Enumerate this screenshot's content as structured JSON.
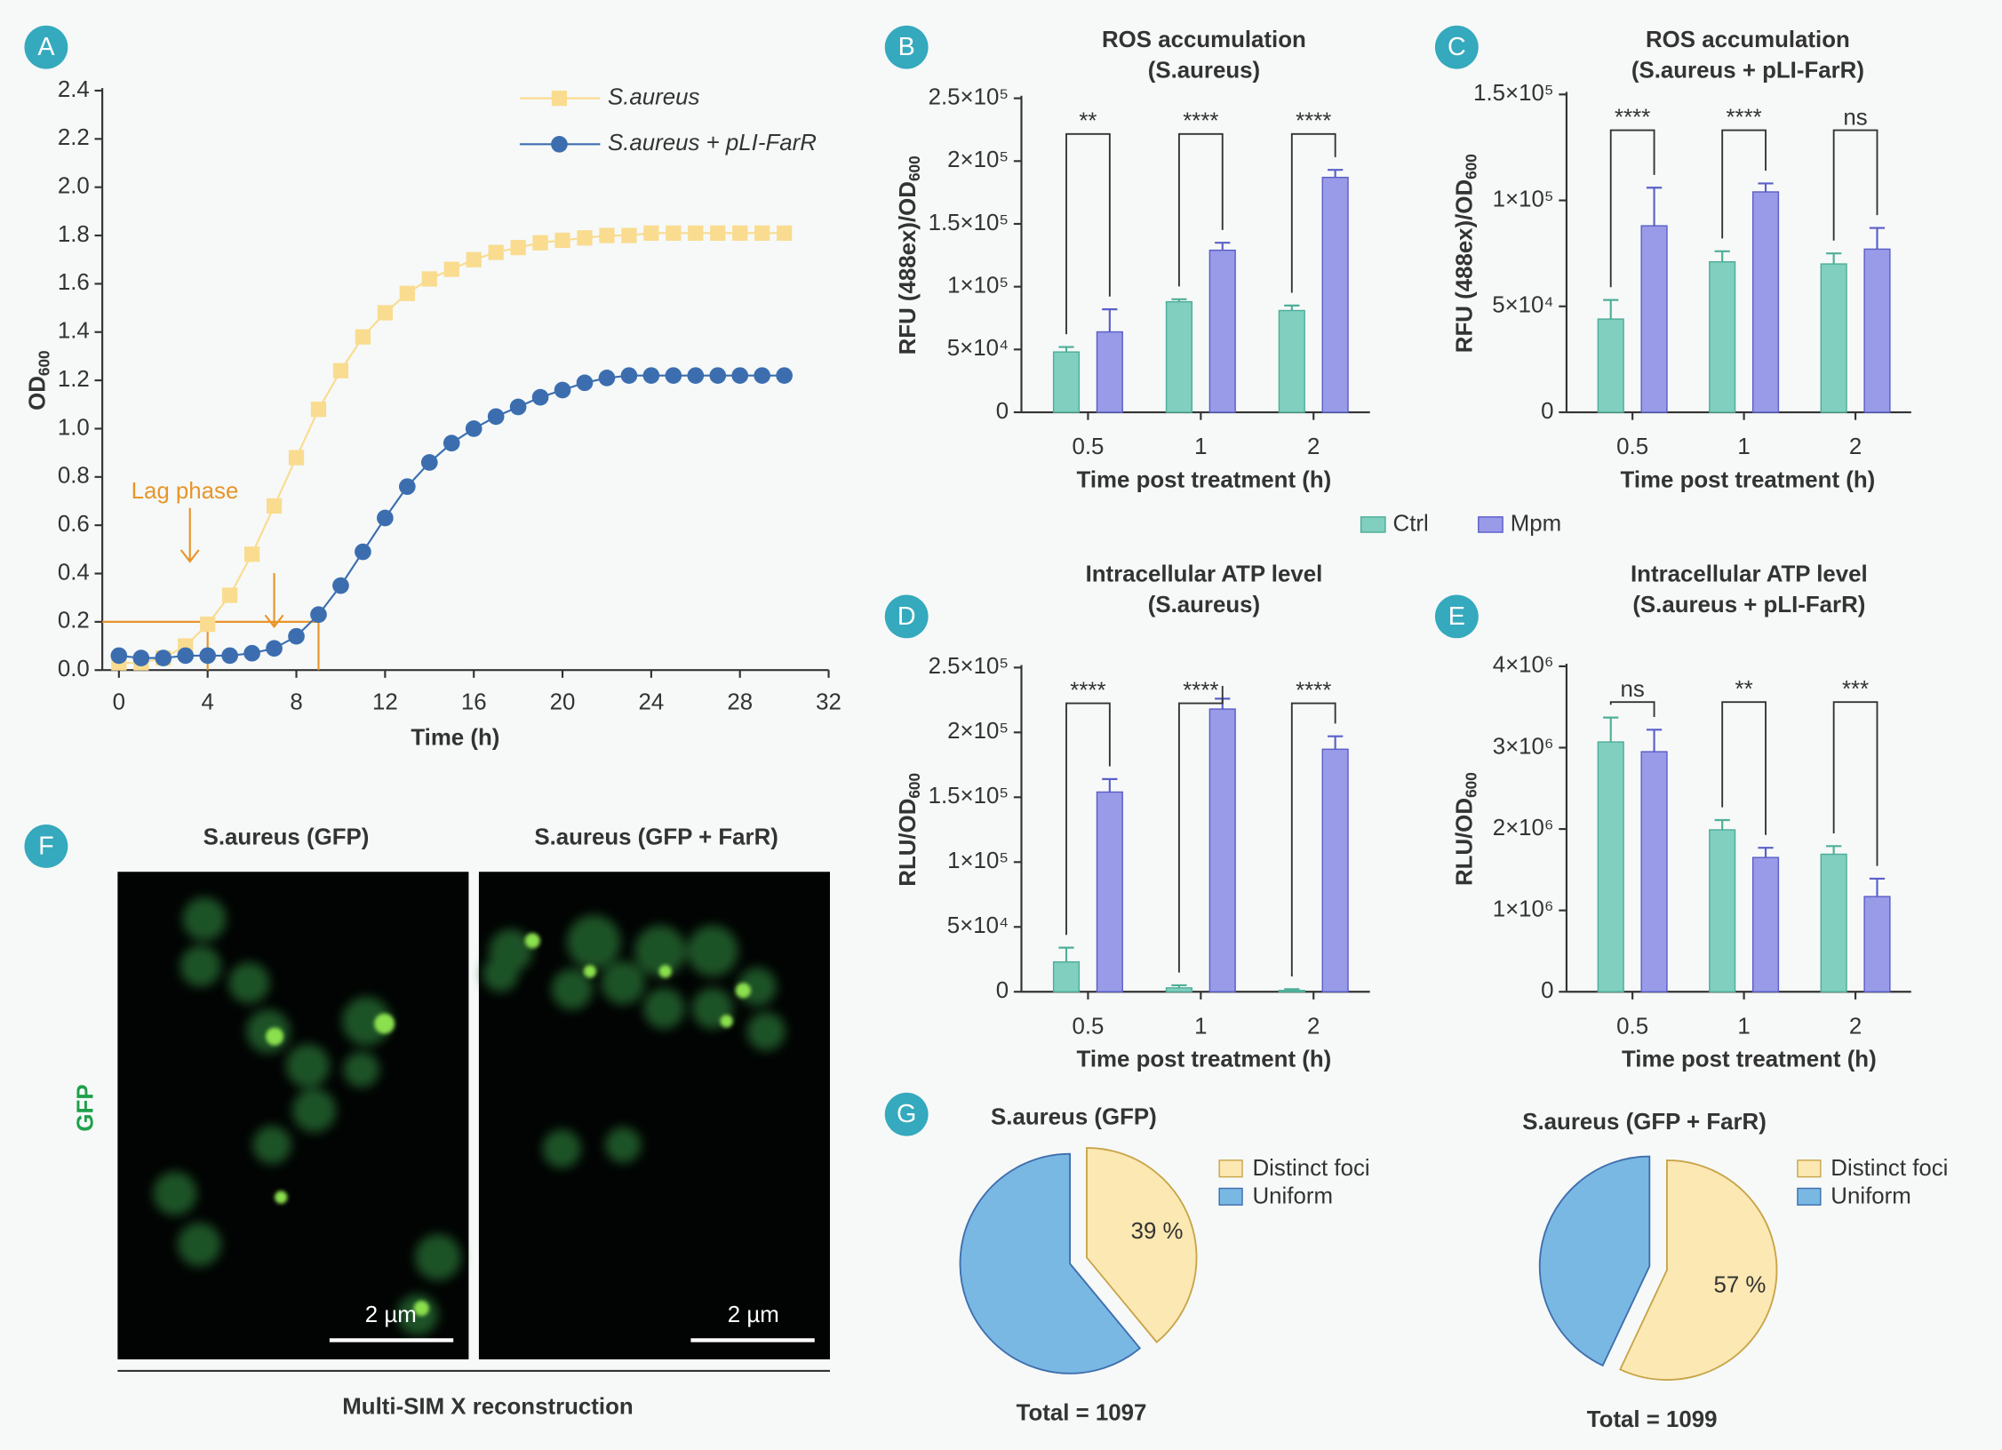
{
  "chart_data": [
    {
      "type": "line",
      "panel": "A",
      "x": [
        0,
        1,
        2,
        3,
        4,
        5,
        6,
        7,
        8,
        9,
        10,
        11,
        12,
        13,
        14,
        15,
        16,
        17,
        18,
        19,
        20,
        21,
        22,
        23,
        24,
        25,
        26,
        27,
        28,
        29,
        30
      ],
      "series": [
        {
          "name": "S.aureus",
          "color": "#f9dc8f",
          "marker": "square",
          "values": [
            0.03,
            0.03,
            0.05,
            0.1,
            0.19,
            0.31,
            0.48,
            0.68,
            0.88,
            1.08,
            1.24,
            1.38,
            1.48,
            1.56,
            1.62,
            1.66,
            1.7,
            1.73,
            1.75,
            1.77,
            1.78,
            1.79,
            1.8,
            1.8,
            1.81,
            1.81,
            1.81,
            1.81,
            1.81,
            1.81,
            1.81
          ]
        },
        {
          "name": "S.aureus + pLI-FarR",
          "color": "#3c6eaf",
          "marker": "circle",
          "values": [
            0.06,
            0.05,
            0.05,
            0.06,
            0.06,
            0.06,
            0.07,
            0.09,
            0.14,
            0.23,
            0.35,
            0.49,
            0.63,
            0.76,
            0.86,
            0.94,
            1.0,
            1.05,
            1.09,
            1.13,
            1.16,
            1.19,
            1.21,
            1.22,
            1.22,
            1.22,
            1.22,
            1.22,
            1.22,
            1.22,
            1.22
          ]
        }
      ],
      "xlabel": "Time (h)",
      "ylabel": [
        "OD",
        "600"
      ],
      "xlim": [
        -0.75,
        32
      ],
      "xticks": [
        0,
        4,
        8,
        12,
        16,
        20,
        24,
        28,
        32
      ],
      "ylim": [
        0,
        2.4
      ],
      "yticks": [
        {
          "value": 0,
          "label": "0.0"
        },
        0.2,
        0.4,
        0.6,
        0.8,
        {
          "value": 1,
          "label": "1.0"
        },
        1.2,
        1.4,
        1.6,
        1.8,
        {
          "value": 2,
          "label": "2.0"
        },
        2.2,
        2.4
      ],
      "annotation": "Lag phase",
      "annotation_color": "#e8952a",
      "lag_level": 0.2,
      "lag_ends": [
        4,
        9
      ],
      "lag_arrows": [
        [
          3.2,
          0.45
        ],
        [
          7,
          0.18
        ]
      ]
    },
    {
      "type": "bar",
      "panel": "B",
      "title": "ROS accumulation",
      "subtitle": "(S.aureus)",
      "categories": [
        "0.5",
        "1",
        "2"
      ],
      "series": [
        {
          "values": [
            48000,
            88000,
            81000
          ],
          "errors": [
            4000,
            2000,
            4000
          ]
        },
        {
          "values": [
            64000,
            129000,
            187000
          ],
          "errors": [
            18000,
            6000,
            6000
          ]
        }
      ],
      "significance": [
        "**",
        "****",
        "****"
      ],
      "xlabel": "Time post treatment (h)",
      "ylabel": [
        "RFU (488ex)/OD",
        "600"
      ],
      "ylim": [
        0,
        250000
      ],
      "yticks": [
        0,
        {
          "value": 50000,
          "label": "5×10⁴"
        },
        {
          "value": 100000,
          "label": "1×10⁵"
        },
        {
          "value": 150000,
          "label": "1.5×10⁵"
        },
        {
          "value": 200000,
          "label": "2×10⁵"
        },
        {
          "value": 250000,
          "label": "2.5×10⁵"
        }
      ]
    },
    {
      "type": "bar",
      "panel": "C",
      "title": "ROS accumulation",
      "subtitle": "(S.aureus + pLI-FarR)",
      "categories": [
        "0.5",
        "1",
        "2"
      ],
      "series": [
        {
          "values": [
            44000,
            71000,
            70000
          ],
          "errors": [
            9000,
            5000,
            5000
          ]
        },
        {
          "values": [
            88000,
            104000,
            77000
          ],
          "errors": [
            18000,
            4000,
            10000
          ]
        }
      ],
      "significance": [
        "****",
        "****",
        "ns"
      ],
      "xlabel": "Time post treatment (h)",
      "ylabel": [
        "RFU (488ex)/OD",
        "600"
      ],
      "ylim": [
        0,
        150000
      ],
      "yticks": [
        0,
        {
          "value": 50000,
          "label": "5×10⁴"
        },
        {
          "value": 100000,
          "label": "1×10⁵"
        },
        {
          "value": 150000,
          "label": "1.5×10⁵"
        }
      ]
    },
    {
      "type": "bar",
      "panel": "D",
      "title": "Intracellular ATP level",
      "subtitle": "(S.aureus)",
      "categories": [
        "0.5",
        "1",
        "2"
      ],
      "series": [
        {
          "values": [
            23000,
            3000,
            1000
          ],
          "errors": [
            11000,
            2000,
            1000
          ]
        },
        {
          "values": [
            154000,
            218000,
            187000
          ],
          "errors": [
            10000,
            8000,
            10000
          ]
        }
      ],
      "significance": [
        "****",
        "****",
        "****"
      ],
      "xlabel": "Time post treatment (h)",
      "ylabel": [
        "RLU/OD",
        "600"
      ],
      "ylim": [
        0,
        250000
      ],
      "yticks": [
        0,
        {
          "value": 50000,
          "label": "5×10⁴"
        },
        {
          "value": 100000,
          "label": "1×10⁵"
        },
        {
          "value": 150000,
          "label": "1.5×10⁵"
        },
        {
          "value": 200000,
          "label": "2×10⁵"
        },
        {
          "value": 250000,
          "label": "2.5×10⁵"
        }
      ]
    },
    {
      "type": "bar",
      "panel": "E",
      "title": "Intracellular ATP level",
      "subtitle": "(S.aureus + pLI-FarR)",
      "categories": [
        "0.5",
        "1",
        "2"
      ],
      "series": [
        {
          "values": [
            3070000,
            1990000,
            1690000
          ],
          "errors": [
            300000,
            120000,
            100000
          ]
        },
        {
          "values": [
            2950000,
            1650000,
            1170000
          ],
          "errors": [
            270000,
            120000,
            220000
          ]
        }
      ],
      "significance": [
        "ns",
        "**",
        "***"
      ],
      "xlabel": "Time post treatment (h)",
      "ylabel": [
        "RLU/OD",
        "600"
      ],
      "ylim": [
        0,
        4000000
      ],
      "yticks": [
        0,
        {
          "value": 1000000,
          "label": "1×10⁶"
        },
        {
          "value": 2000000,
          "label": "2×10⁶"
        },
        {
          "value": 3000000,
          "label": "3×10⁶"
        },
        {
          "value": 4000000,
          "label": "4×10⁶"
        }
      ]
    },
    {
      "type": "pie",
      "panel": "G",
      "title": "S.aureus (GFP)",
      "categories": [
        "Distinct foci",
        "Uniform"
      ],
      "values": [
        39,
        61
      ],
      "value_labels": [
        "39 %",
        null
      ],
      "colors": [
        "#fce8b2",
        "#7ab8e4"
      ],
      "edge_colors": [
        "#c8a54a",
        "#3f6fae"
      ],
      "total": "Total = 1097"
    },
    {
      "type": "pie",
      "title": "S.aureus (GFP + FarR)",
      "categories": [
        "Distinct foci",
        "Uniform"
      ],
      "values": [
        57,
        43
      ],
      "value_labels": [
        "57 %",
        null
      ],
      "colors": [
        "#fce8b2",
        "#7ab8e4"
      ],
      "edge_colors": [
        "#c8a54a",
        "#3f6fae"
      ],
      "total": "Total = 1099"
    }
  ],
  "bar_legend": [
    {
      "name": "Ctrl",
      "color": "#80cfbf"
    },
    {
      "name": "Mpm",
      "color": "#9a9be8"
    }
  ],
  "microscopy": {
    "panel": "F",
    "channel": "GFP",
    "images": [
      {
        "title": "S.aureus (GFP)",
        "scale_bar": "2 µm"
      },
      {
        "title": "S.aureus (GFP + FarR)",
        "scale_bar": "2 µm"
      }
    ],
    "caption": "Multi-SIM X reconstruction"
  }
}
